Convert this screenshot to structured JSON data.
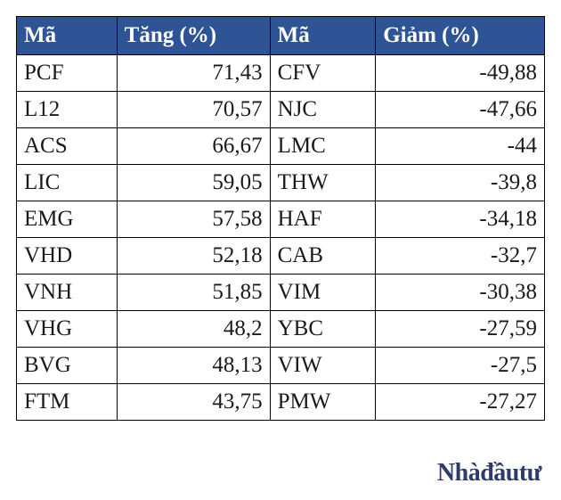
{
  "table": {
    "type": "table",
    "header_bg": "#2f5496",
    "header_color": "#ffffff",
    "border_color": "#000000",
    "text_color": "#1a1a1a",
    "font_family": "Times New Roman",
    "cell_fontsize": 25,
    "columns": [
      {
        "label": "Mã",
        "align": "left"
      },
      {
        "label": "Tăng (%)",
        "align": "right"
      },
      {
        "label": "Mã",
        "align": "left"
      },
      {
        "label": "Giảm (%)",
        "align": "right"
      }
    ],
    "rows": [
      {
        "ma1": "PCF",
        "tang": "71,43",
        "ma2": "CFV",
        "giam": "-49,88"
      },
      {
        "ma1": "L12",
        "tang": "70,57",
        "ma2": "NJC",
        "giam": "-47,66"
      },
      {
        "ma1": "ACS",
        "tang": "66,67",
        "ma2": "LMC",
        "giam": "-44"
      },
      {
        "ma1": "LIC",
        "tang": "59,05",
        "ma2": "THW",
        "giam": "-39,8"
      },
      {
        "ma1": "EMG",
        "tang": "57,58",
        "ma2": "HAF",
        "giam": "-34,18"
      },
      {
        "ma1": "VHD",
        "tang": "52,18",
        "ma2": "CAB",
        "giam": "-32,7"
      },
      {
        "ma1": "VNH",
        "tang": "51,85",
        "ma2": "VIM",
        "giam": "-30,38"
      },
      {
        "ma1": "VHG",
        "tang": "48,2",
        "ma2": "YBC",
        "giam": "-27,59"
      },
      {
        "ma1": "BVG",
        "tang": "48,13",
        "ma2": "VIW",
        "giam": "-27,5"
      },
      {
        "ma1": "FTM",
        "tang": "43,75",
        "ma2": "PMW",
        "giam": "-27,27"
      }
    ]
  },
  "watermark": "Nhàđầutư"
}
